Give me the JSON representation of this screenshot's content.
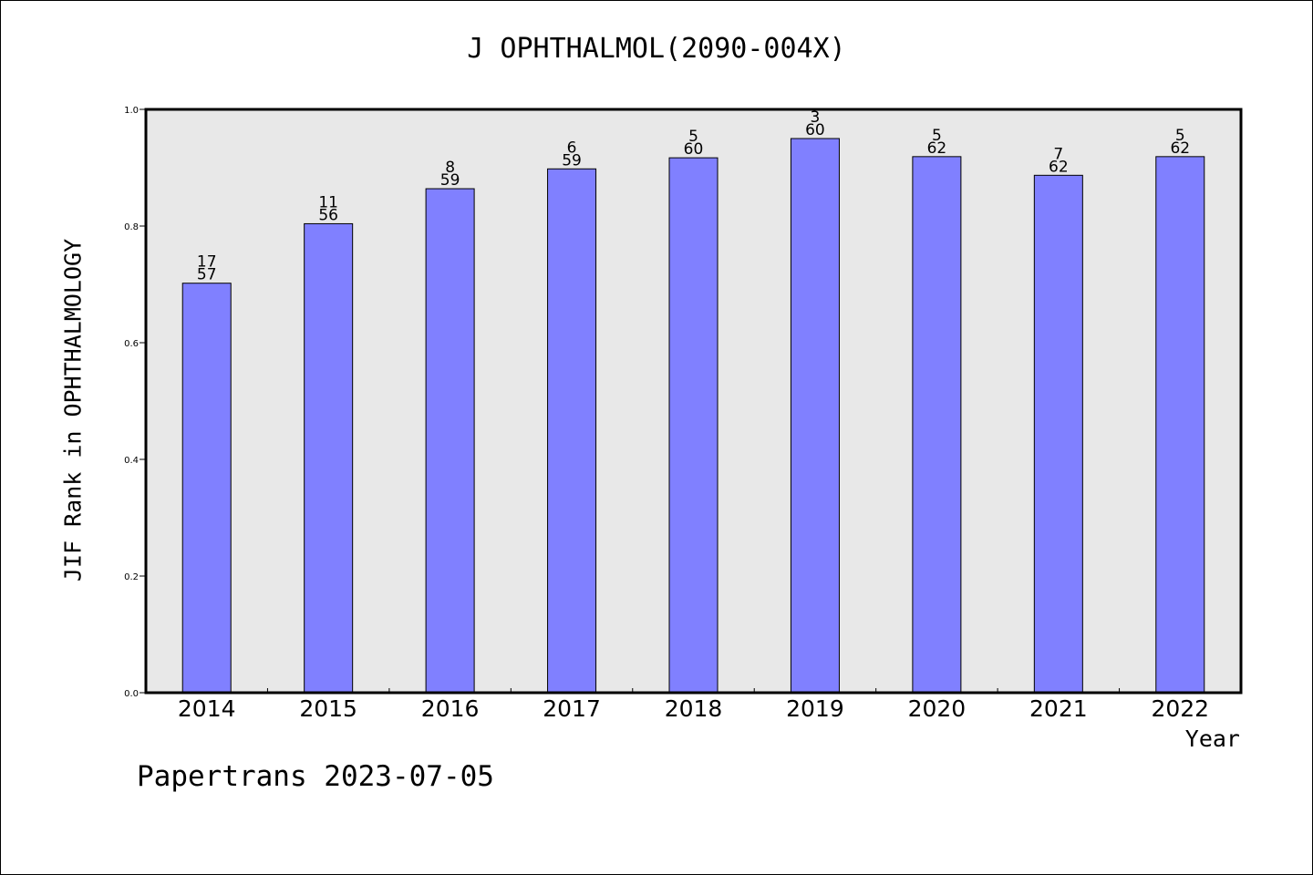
{
  "chart_data": {
    "type": "bar",
    "title": "J OPHTHALMOL(2090-004X)",
    "xlabel": "Year",
    "ylabel": "JIF Rank in OPHTHALMOLOGY",
    "ylim": [
      0,
      1.0
    ],
    "yticks": [
      "0.0",
      "0.2",
      "0.4",
      "0.6",
      "0.8",
      "1.0"
    ],
    "categories": [
      "2014",
      "2015",
      "2016",
      "2017",
      "2018",
      "2019",
      "2020",
      "2021",
      "2022"
    ],
    "values": [
      0.702,
      0.804,
      0.864,
      0.898,
      0.917,
      0.95,
      0.919,
      0.887,
      0.919
    ],
    "rank": [
      "17",
      "11",
      "8",
      "6",
      "5",
      "3",
      "5",
      "7",
      "5"
    ],
    "total": [
      "57",
      "56",
      "59",
      "59",
      "60",
      "60",
      "62",
      "62",
      "62"
    ],
    "bar_color": "#8080ff",
    "plot_background": "#e8e8e8",
    "grid": false,
    "legend": "none"
  },
  "footer": {
    "text": "Papertrans 2023-07-05"
  }
}
